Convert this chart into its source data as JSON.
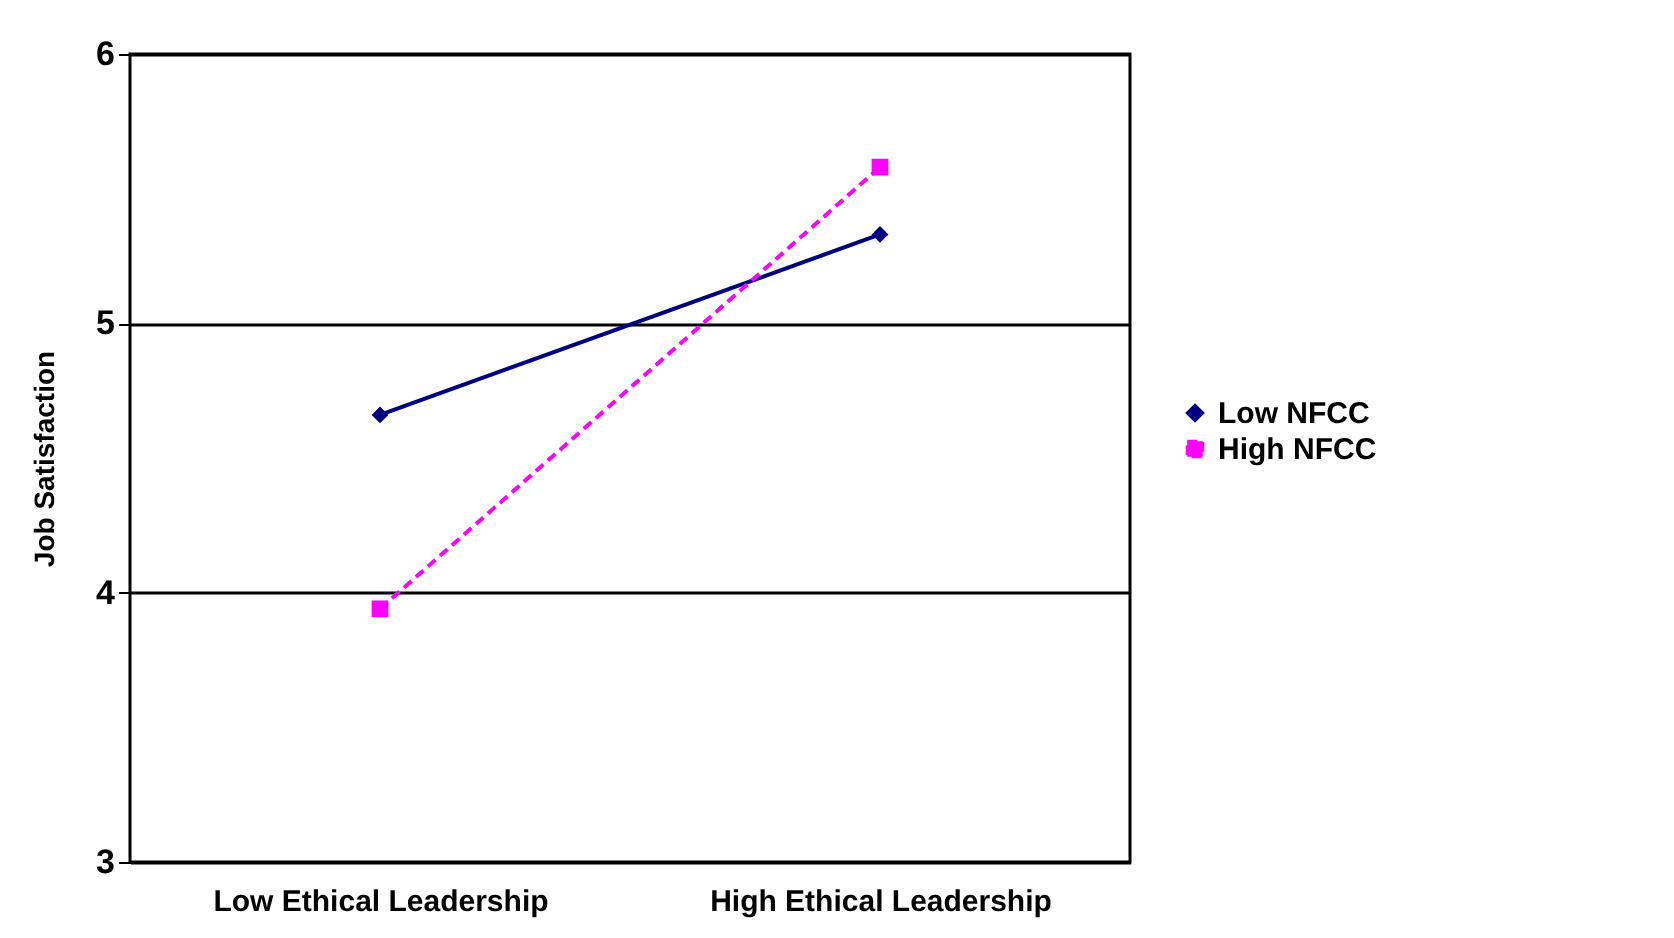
{
  "chart_data": {
    "type": "line",
    "ylabel": "Job Satisfaction",
    "categories": [
      "Low Ethical Leadership",
      "High Ethical Leadership"
    ],
    "series": [
      {
        "name": "Low NFCC",
        "color": "#000080",
        "values": [
          4.66,
          5.33
        ],
        "marker": "diamond",
        "line_style": "solid"
      },
      {
        "name": "High NFCC",
        "color": "#ff00ff",
        "values": [
          3.94,
          5.58
        ],
        "marker": "square",
        "line_style": "dashed"
      }
    ],
    "ylim": [
      3,
      6
    ],
    "yticks": [
      3,
      4,
      5,
      6
    ],
    "grid": "y",
    "legend": "right"
  }
}
